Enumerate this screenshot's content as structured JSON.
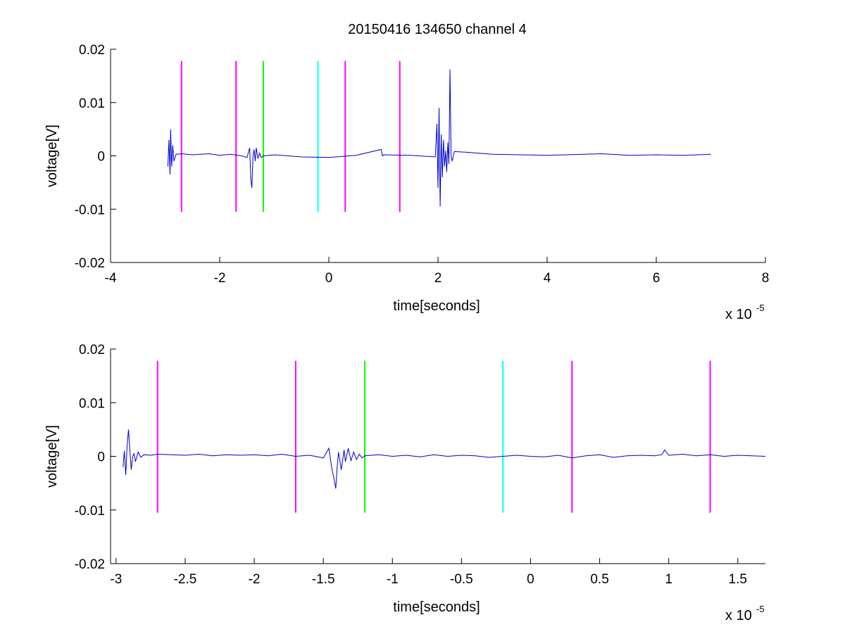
{
  "figure": {
    "title": "20150416 134650 channel 4"
  },
  "chart_data": [
    {
      "type": "line",
      "xlabel": "time[seconds]",
      "ylabel": "voltage[V]",
      "x_multiplier_label": "x 10",
      "x_multiplier_exponent": "-5",
      "xlim": [
        -4,
        8
      ],
      "ylim": [
        -0.02,
        0.02
      ],
      "x_ticks": [
        -4,
        -2,
        0,
        2,
        4,
        6,
        8
      ],
      "x_tick_labels": [
        "-4",
        "-2",
        "0",
        "2",
        "4",
        "6",
        "8"
      ],
      "y_ticks": [
        -0.02,
        -0.01,
        0,
        0.01,
        0.02
      ],
      "y_tick_labels": [
        "-0.02",
        "-0.01",
        "0",
        "0.01",
        "0.02"
      ],
      "grid": false,
      "series": [
        {
          "color": "#0000cc",
          "x": [
            -2.95,
            -2.93,
            -2.91,
            -2.9,
            -2.88,
            -2.86,
            -2.84,
            -2.8,
            -2.7,
            -2.5,
            -2.2,
            -2.0,
            -1.8,
            -1.6,
            -1.5,
            -1.45,
            -1.43,
            -1.41,
            -1.39,
            -1.37,
            -1.35,
            -1.33,
            -1.3,
            -1.27,
            -1.24,
            -1.2,
            -1.0,
            -0.5,
            0.0,
            0.5,
            0.96,
            0.98,
            1.0,
            1.5,
            1.95,
            1.98,
            2.0,
            2.02,
            2.04,
            2.06,
            2.08,
            2.1,
            2.12,
            2.14,
            2.16,
            2.18,
            2.2,
            2.22,
            2.24,
            2.26,
            2.3,
            2.5,
            3.0,
            4.0,
            5.0,
            5.5,
            6.0,
            6.5,
            7.0
          ],
          "y": [
            -0.002,
            0.003,
            -0.0035,
            0.005,
            -0.002,
            0.002,
            -0.001,
            0.0003,
            0.0004,
            0.0002,
            0.0004,
            0.0001,
            0.0003,
            0.0,
            -0.0003,
            0.0015,
            -0.0045,
            -0.006,
            0.0,
            0.0012,
            -0.001,
            0.0015,
            -0.0005,
            0.0005,
            -0.0003,
            0.0,
            0.0002,
            -0.0002,
            -0.0003,
            0.0001,
            0.0012,
            0.0,
            0.0002,
            0.0001,
            -0.0002,
            0.006,
            -0.006,
            0.009,
            -0.0095,
            0.004,
            -0.004,
            0.003,
            -0.002,
            0.001,
            -0.003,
            0.0025,
            -0.0015,
            0.0162,
            0.0,
            -0.001,
            0.0008,
            0.0007,
            0.0003,
            0.0001,
            0.0004,
            0.0001,
            0.0002,
            0.0001,
            0.0003
          ]
        }
      ],
      "markers": [
        {
          "x": -2.7,
          "color": "#ff00ff"
        },
        {
          "x": -1.7,
          "color": "#ff00ff"
        },
        {
          "x": -1.2,
          "color": "#00ff00"
        },
        {
          "x": -0.2,
          "color": "#00ffff"
        },
        {
          "x": 0.3,
          "color": "#ff00ff"
        },
        {
          "x": 1.3,
          "color": "#ff00ff"
        }
      ],
      "marker_range": [
        -0.0105,
        0.0178
      ]
    },
    {
      "type": "line",
      "xlabel": "time[seconds]",
      "ylabel": "voltage[V]",
      "x_multiplier_label": "x 10",
      "x_multiplier_exponent": "-5",
      "xlim": [
        -3.04,
        1.7
      ],
      "ylim": [
        -0.02,
        0.02
      ],
      "x_ticks": [
        -3,
        -2.5,
        -2,
        -1.5,
        -1,
        -0.5,
        0,
        0.5,
        1,
        1.5
      ],
      "x_tick_labels": [
        "-3",
        "-2.5",
        "-2",
        "-1.5",
        "-1",
        "-0.5",
        "0",
        "0.5",
        "1",
        "1.5"
      ],
      "y_ticks": [
        -0.02,
        -0.01,
        0,
        0.01,
        0.02
      ],
      "y_tick_labels": [
        "-0.02",
        "-0.01",
        "0",
        "0.01",
        "0.02"
      ],
      "grid": false,
      "series": [
        {
          "color": "#0000cc",
          "x": [
            -2.95,
            -2.94,
            -2.93,
            -2.92,
            -2.91,
            -2.9,
            -2.89,
            -2.88,
            -2.87,
            -2.86,
            -2.84,
            -2.82,
            -2.8,
            -2.75,
            -2.7,
            -2.6,
            -2.5,
            -2.4,
            -2.3,
            -2.2,
            -2.1,
            -2.0,
            -1.9,
            -1.8,
            -1.7,
            -1.6,
            -1.5,
            -1.46,
            -1.44,
            -1.42,
            -1.41,
            -1.4,
            -1.39,
            -1.37,
            -1.35,
            -1.34,
            -1.32,
            -1.3,
            -1.28,
            -1.26,
            -1.24,
            -1.22,
            -1.2,
            -1.1,
            -1.0,
            -0.9,
            -0.8,
            -0.7,
            -0.6,
            -0.5,
            -0.4,
            -0.3,
            -0.2,
            -0.1,
            0.0,
            0.1,
            0.2,
            0.3,
            0.4,
            0.5,
            0.6,
            0.7,
            0.8,
            0.9,
            0.95,
            0.97,
            1.0,
            1.1,
            1.2,
            1.3,
            1.4,
            1.5,
            1.6,
            1.7
          ],
          "y": [
            -0.002,
            0.001,
            -0.0035,
            0.002,
            0.005,
            0.001,
            -0.0025,
            0.0,
            0.0005,
            -0.001,
            0.0008,
            -0.0002,
            0.0003,
            0.0002,
            0.0004,
            0.0003,
            0.0002,
            0.0004,
            0.0001,
            0.0003,
            0.0002,
            0.0003,
            0.0001,
            0.0004,
            0.0,
            0.0002,
            -0.0003,
            0.0015,
            -0.002,
            -0.0045,
            -0.006,
            -0.002,
            0.0008,
            -0.0025,
            0.0012,
            -0.001,
            0.0015,
            -0.0008,
            0.0008,
            -0.0006,
            0.0004,
            -0.0003,
            0.0001,
            0.0003,
            0.0,
            0.0002,
            -0.0001,
            0.0003,
            0.0,
            0.0002,
            0.0001,
            -0.0002,
            0.0,
            0.0002,
            0.0,
            -0.0001,
            0.0002,
            -0.0003,
            0.0001,
            0.0003,
            -0.0002,
            0.0001,
            0.0002,
            0.0001,
            0.0003,
            0.0012,
            0.0002,
            0.0004,
            0.0001,
            0.0003,
            0.0,
            0.0002,
            0.0001,
            0.0
          ]
        }
      ],
      "markers": [
        {
          "x": -2.7,
          "color": "#ff00ff"
        },
        {
          "x": -1.7,
          "color": "#ff00ff"
        },
        {
          "x": -1.2,
          "color": "#00ff00"
        },
        {
          "x": -0.2,
          "color": "#00ffff"
        },
        {
          "x": 0.3,
          "color": "#ff00ff"
        },
        {
          "x": 1.3,
          "color": "#ff00ff"
        }
      ],
      "marker_range": [
        -0.0105,
        0.0178
      ]
    }
  ]
}
